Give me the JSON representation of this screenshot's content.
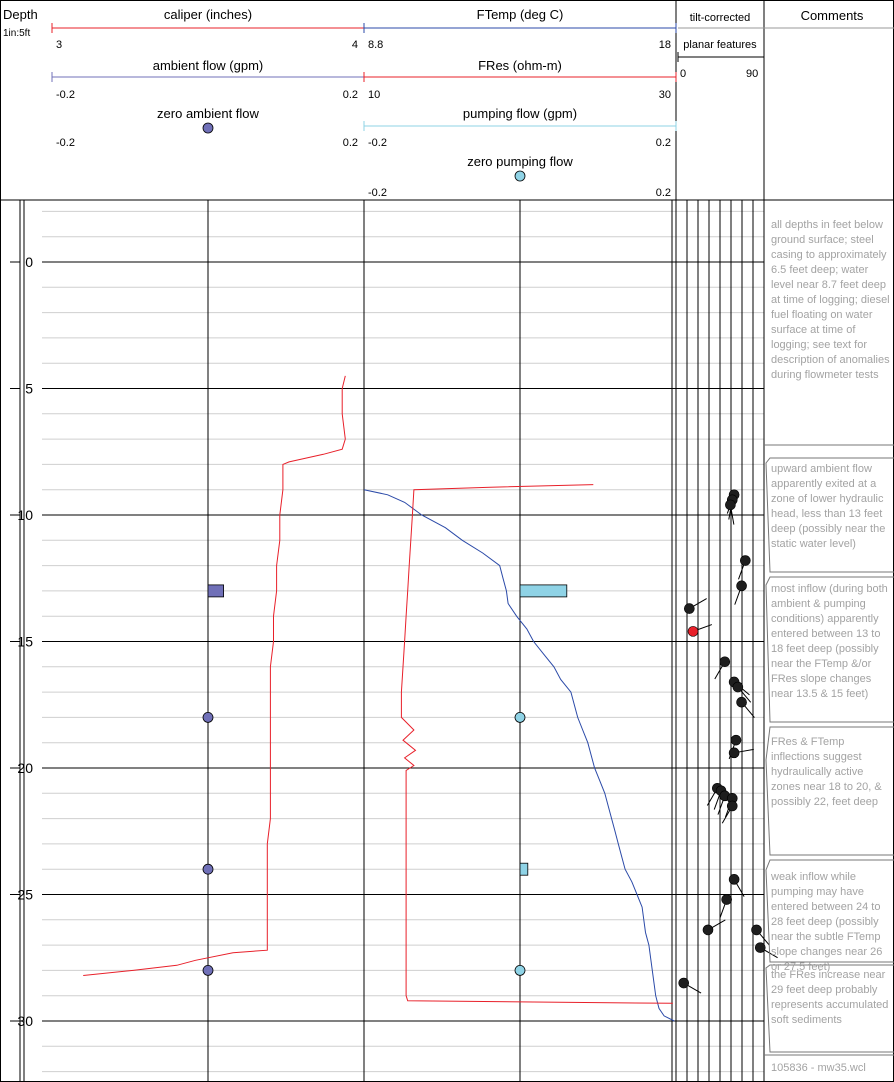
{
  "header": {
    "depth_label": "Depth",
    "scale_label": "1in:5ft",
    "comments_label": "Comments",
    "caliper": {
      "label": "caliper (inches)",
      "min": "3",
      "max": "4"
    },
    "ambient_flow": {
      "label": "ambient flow (gpm)",
      "min": "-0.2",
      "max": "0.2"
    },
    "zero_ambient_flow": {
      "label": "zero ambient flow",
      "min": "-0.2",
      "max": "0.2"
    },
    "ftemp": {
      "label": "FTemp (deg C)",
      "min": "8.8",
      "max": "18"
    },
    "fres": {
      "label": "FRes (ohm-m)",
      "min": "10",
      "max": "30"
    },
    "pumping_flow": {
      "label": "pumping flow (gpm)",
      "min": "-0.2",
      "max": "0.2"
    },
    "zero_pumping_flow": {
      "label": "zero pumping flow",
      "min": "-0.2",
      "max": "0.2"
    },
    "tilt_label": "tilt-corrected",
    "planar_label": "planar features",
    "planar_min": "0",
    "planar_max": "90"
  },
  "colors": {
    "caliper": "#e8202a",
    "fres": "#e8202a",
    "ftemp": "#2b4aa8",
    "ambient": "#7070b8",
    "pumping": "#8fd3e6",
    "feature": "#1e1e1e",
    "feature_highlight": "#e8202a",
    "note_text": "#a3a3a3"
  },
  "comments": [
    "all depths in feet below ground surface; steel casing to approximately 6.5 feet deep; water level near 8.7 feet deep at time of logging; diesel fuel floating on water surface at time of logging; see text for description of anomalies during flowmeter tests",
    "upward ambient flow apparently exited at a zone of lower hydraulic head, less than 13 feet deep (possibly near the static water level)",
    "most inflow (during both ambient & pumping conditions) apparently entered between 13 to 18 feet deep (possibly near the FTemp &/or FRes slope changes near 13.5 & 15 feet)",
    "FRes & FTemp inflections suggest hydraulically active zones near 18 to 20, & possibly 22, feet deep",
    "weak inflow while pumping may have entered between 24 to 28 feet deep (possibly near the subtle FTemp slope changes near 26 or 27.5 feet)",
    "the FRes increase near 29 feet deep probably represents accumulated soft sediments",
    "105836 - mw35.wcl"
  ],
  "chart_data": {
    "type": "line",
    "depth_axis": {
      "label": "Depth",
      "unit": "feet",
      "ticks": [
        0,
        5,
        10,
        15,
        20,
        25,
        30
      ],
      "range": [
        -2.4,
        32.4
      ],
      "scale": "1in:5ft"
    },
    "caliper": [
      [
        4.5,
        3.94
      ],
      [
        5,
        3.93
      ],
      [
        6,
        3.93
      ],
      [
        7,
        3.94
      ],
      [
        7.4,
        3.93
      ],
      [
        7.6,
        3.87
      ],
      [
        7.9,
        3.76
      ],
      [
        8.0,
        3.74
      ],
      [
        9,
        3.74
      ],
      [
        10,
        3.73
      ],
      [
        11,
        3.73
      ],
      [
        12,
        3.72
      ],
      [
        13,
        3.72
      ],
      [
        14,
        3.71
      ],
      [
        15,
        3.71
      ],
      [
        16,
        3.7
      ],
      [
        17,
        3.7
      ],
      [
        18,
        3.7
      ],
      [
        19,
        3.7
      ],
      [
        20,
        3.7
      ],
      [
        21,
        3.7
      ],
      [
        22,
        3.7
      ],
      [
        23,
        3.69
      ],
      [
        24,
        3.69
      ],
      [
        25,
        3.69
      ],
      [
        26,
        3.69
      ],
      [
        27,
        3.69
      ],
      [
        27.2,
        3.69
      ],
      [
        27.3,
        3.58
      ],
      [
        27.6,
        3.46
      ],
      [
        27.8,
        3.4
      ],
      [
        28.0,
        3.26
      ],
      [
        28.2,
        3.1
      ]
    ],
    "ftemp": [
      [
        9.0,
        8.8
      ],
      [
        9.2,
        9.5
      ],
      [
        9.5,
        10.0
      ],
      [
        10,
        10.5
      ],
      [
        10.5,
        11.2
      ],
      [
        11,
        11.7
      ],
      [
        11.5,
        12.3
      ],
      [
        12,
        12.8
      ],
      [
        12.5,
        12.9
      ],
      [
        13,
        13.0
      ],
      [
        13.5,
        13.05
      ],
      [
        14,
        13.3
      ],
      [
        14.5,
        13.6
      ],
      [
        15,
        13.8
      ],
      [
        15.5,
        14.1
      ],
      [
        16,
        14.4
      ],
      [
        16.5,
        14.6
      ],
      [
        17,
        14.9
      ],
      [
        17.5,
        15.0
      ],
      [
        18,
        15.1
      ],
      [
        18.5,
        15.25
      ],
      [
        19,
        15.4
      ],
      [
        19.5,
        15.5
      ],
      [
        20,
        15.6
      ],
      [
        20.5,
        15.75
      ],
      [
        21,
        15.9
      ],
      [
        21.5,
        16.0
      ],
      [
        22,
        16.1
      ],
      [
        22.5,
        16.2
      ],
      [
        23,
        16.3
      ],
      [
        23.5,
        16.4
      ],
      [
        24,
        16.5
      ],
      [
        24.5,
        16.7
      ],
      [
        25,
        16.85
      ],
      [
        25.5,
        17.0
      ],
      [
        26,
        17.05
      ],
      [
        26.5,
        17.1
      ],
      [
        27,
        17.2
      ],
      [
        27.5,
        17.25
      ],
      [
        28,
        17.3
      ],
      [
        28.5,
        17.35
      ],
      [
        29,
        17.4
      ],
      [
        29.5,
        17.5
      ],
      [
        29.8,
        17.65
      ],
      [
        30,
        17.95
      ]
    ],
    "fres": [
      [
        8.8,
        24.7
      ],
      [
        8.9,
        18.1
      ],
      [
        9.0,
        13.2
      ],
      [
        10,
        13.1
      ],
      [
        11,
        13.0
      ],
      [
        12,
        12.9
      ],
      [
        13,
        12.8
      ],
      [
        14,
        12.7
      ],
      [
        15,
        12.6
      ],
      [
        16,
        12.5
      ],
      [
        17,
        12.4
      ],
      [
        18,
        12.4
      ],
      [
        18.5,
        13.2
      ],
      [
        18.9,
        12.5
      ],
      [
        19.3,
        13.3
      ],
      [
        19.6,
        12.6
      ],
      [
        19.9,
        13.2
      ],
      [
        20.1,
        12.7
      ],
      [
        21,
        12.7
      ],
      [
        22,
        12.7
      ],
      [
        23,
        12.7
      ],
      [
        24,
        12.7
      ],
      [
        25,
        12.7
      ],
      [
        26,
        12.7
      ],
      [
        27,
        12.7
      ],
      [
        28,
        12.7
      ],
      [
        29,
        12.7
      ],
      [
        29.2,
        12.8
      ],
      [
        29.3,
        29.8
      ]
    ],
    "ambient_flow": [
      {
        "depth": 13,
        "gpm": 0.02
      }
    ],
    "zero_ambient_flow_depths": [
      18,
      24,
      28
    ],
    "pumping_flow": [
      {
        "depth": 13,
        "gpm": 0.06
      },
      {
        "depth": 24,
        "gpm": 0.01
      }
    ],
    "zero_pumping_flow_depths": [
      18,
      28
    ],
    "planar_features": [
      {
        "depth": 9.2,
        "dip": 58,
        "dir": 200
      },
      {
        "depth": 9.4,
        "dip": 56,
        "dir": 190
      },
      {
        "depth": 9.6,
        "dip": 54,
        "dir": 170
      },
      {
        "depth": 11.8,
        "dip": 70,
        "dir": 200
      },
      {
        "depth": 12.8,
        "dip": 66,
        "dir": 200
      },
      {
        "depth": 13.7,
        "dip": 10,
        "dir": 60,
        "highlight": false
      },
      {
        "depth": 14.6,
        "dip": 14,
        "dir": 70,
        "highlight": true
      },
      {
        "depth": 15.8,
        "dip": 48,
        "dir": 210
      },
      {
        "depth": 16.6,
        "dip": 58,
        "dir": 130
      },
      {
        "depth": 16.8,
        "dip": 62,
        "dir": 140
      },
      {
        "depth": 17.4,
        "dip": 66,
        "dir": 140
      },
      {
        "depth": 18.9,
        "dip": 60,
        "dir": 200
      },
      {
        "depth": 19.4,
        "dip": 58,
        "dir": 80
      },
      {
        "depth": 20.8,
        "dip": 40,
        "dir": 210
      },
      {
        "depth": 20.9,
        "dip": 44,
        "dir": 200
      },
      {
        "depth": 21.1,
        "dip": 48,
        "dir": 200
      },
      {
        "depth": 21.2,
        "dip": 56,
        "dir": 200
      },
      {
        "depth": 21.5,
        "dip": 56,
        "dir": 210
      },
      {
        "depth": 24.4,
        "dip": 58,
        "dir": 150
      },
      {
        "depth": 25.2,
        "dip": 50,
        "dir": 200
      },
      {
        "depth": 26.4,
        "dip": 30,
        "dir": 60
      },
      {
        "depth": 26.4,
        "dip": 82,
        "dir": 140
      },
      {
        "depth": 27.1,
        "dip": 86,
        "dir": 120
      },
      {
        "depth": 28.5,
        "dip": 4,
        "dir": 120
      }
    ]
  }
}
